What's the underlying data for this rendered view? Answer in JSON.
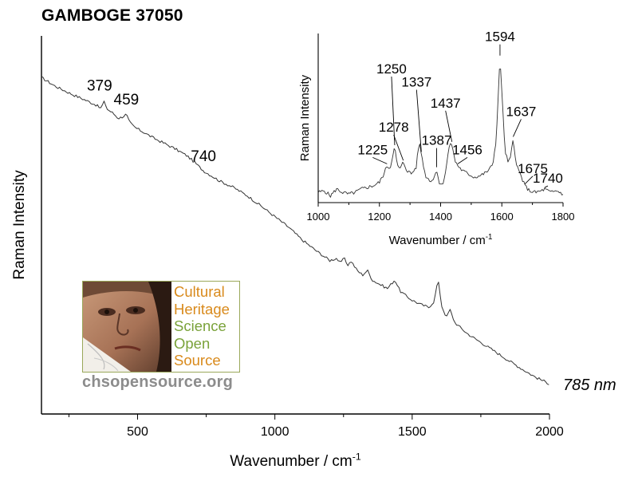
{
  "title": "GAMBOGE 37050",
  "laser_label": "785 nm",
  "logo": {
    "words": [
      "Cultural",
      "Heritage",
      "Science",
      "Open",
      "Source"
    ],
    "url": "chsopensource.org",
    "colors": {
      "orange": "#d98a1c",
      "green": "#7aa23a"
    }
  },
  "chart_data": [
    {
      "type": "line",
      "name": "main",
      "title": "GAMBOGE 37050",
      "xlabel": "Wavenumber / cm",
      "xlabel_superscript": "-1",
      "ylabel": "Raman Intensity",
      "xlim": [
        150,
        2000
      ],
      "ylim": [
        0,
        100
      ],
      "xticks": [
        500,
        1000,
        1500,
        2000
      ],
      "xtick_labels": [
        "500",
        "1000",
        "1500",
        "2000"
      ],
      "minor_xtick_step": 250,
      "y_tick_labels_shown": false,
      "grid": false,
      "color": "#333333",
      "points": [
        [
          150,
          89
        ],
        [
          200,
          86.7
        ],
        [
          260,
          84.6
        ],
        [
          320,
          82.7
        ],
        [
          350,
          81.7
        ],
        [
          365,
          80.8
        ],
        [
          379,
          82.6
        ],
        [
          390,
          80.6
        ],
        [
          410,
          79.6
        ],
        [
          430,
          78.2
        ],
        [
          445,
          78.6
        ],
        [
          459,
          79.3
        ],
        [
          470,
          77.2
        ],
        [
          490,
          75.8
        ],
        [
          520,
          74.6
        ],
        [
          560,
          72.9
        ],
        [
          600,
          71.5
        ],
        [
          640,
          70.0
        ],
        [
          680,
          68.3
        ],
        [
          710,
          66.4
        ],
        [
          740,
          64.3
        ],
        [
          760,
          63.4
        ],
        [
          800,
          61.6
        ],
        [
          850,
          59.9
        ],
        [
          900,
          57.7
        ],
        [
          950,
          55.0
        ],
        [
          1000,
          52.2
        ],
        [
          1050,
          49.4
        ],
        [
          1100,
          46.0
        ],
        [
          1150,
          43.2
        ],
        [
          1200,
          40.6
        ],
        [
          1225,
          41.2
        ],
        [
          1240,
          39.7
        ],
        [
          1250,
          41.5
        ],
        [
          1265,
          39.4
        ],
        [
          1278,
          40.4
        ],
        [
          1300,
          37.9
        ],
        [
          1320,
          36.8
        ],
        [
          1337,
          38.0
        ],
        [
          1355,
          35.4
        ],
        [
          1387,
          34.1
        ],
        [
          1410,
          33.2
        ],
        [
          1437,
          35.5
        ],
        [
          1456,
          32.5
        ],
        [
          1480,
          31.1
        ],
        [
          1500,
          30.1
        ],
        [
          1530,
          29.0
        ],
        [
          1560,
          28.2
        ],
        [
          1580,
          29.8
        ],
        [
          1594,
          35.6
        ],
        [
          1608,
          28.5
        ],
        [
          1625,
          25.5
        ],
        [
          1637,
          27.7
        ],
        [
          1655,
          24.2
        ],
        [
          1675,
          22.9
        ],
        [
          1700,
          21.3
        ],
        [
          1740,
          19.4
        ],
        [
          1800,
          16.6
        ],
        [
          1850,
          14.2
        ],
        [
          1900,
          11.9
        ],
        [
          1950,
          9.7
        ],
        [
          2000,
          8.0
        ]
      ],
      "annotations": [
        {
          "x": 379,
          "label": "379"
        },
        {
          "x": 459,
          "label": "459"
        },
        {
          "x": 740,
          "label": "740"
        }
      ]
    },
    {
      "type": "line",
      "name": "inset",
      "xlabel": "Wavenumber / cm",
      "xlabel_superscript": "-1",
      "ylabel": "Raman Intensity",
      "xlim": [
        1000,
        1800
      ],
      "ylim": [
        0,
        100
      ],
      "xticks": [
        1000,
        1200,
        1400,
        1600,
        1800
      ],
      "xtick_labels": [
        "1000",
        "1200",
        "1400",
        "1600",
        "1800"
      ],
      "minor_xtick_step": 100,
      "y_tick_labels_shown": false,
      "grid": false,
      "color": "#333333",
      "points": [
        [
          1000,
          6
        ],
        [
          1020,
          7
        ],
        [
          1040,
          4
        ],
        [
          1060,
          8
        ],
        [
          1080,
          6
        ],
        [
          1100,
          5
        ],
        [
          1120,
          6
        ],
        [
          1140,
          8
        ],
        [
          1160,
          9
        ],
        [
          1180,
          10
        ],
        [
          1200,
          12
        ],
        [
          1215,
          17
        ],
        [
          1225,
          22
        ],
        [
          1235,
          20
        ],
        [
          1242,
          27
        ],
        [
          1250,
          33
        ],
        [
          1258,
          22
        ],
        [
          1268,
          20
        ],
        [
          1278,
          24
        ],
        [
          1290,
          19
        ],
        [
          1305,
          17
        ],
        [
          1320,
          21
        ],
        [
          1330,
          36
        ],
        [
          1337,
          29
        ],
        [
          1350,
          16
        ],
        [
          1365,
          13
        ],
        [
          1378,
          14
        ],
        [
          1387,
          20
        ],
        [
          1395,
          12
        ],
        [
          1405,
          10
        ],
        [
          1415,
          17
        ],
        [
          1428,
          33
        ],
        [
          1437,
          35
        ],
        [
          1446,
          25
        ],
        [
          1456,
          22
        ],
        [
          1470,
          19
        ],
        [
          1490,
          17
        ],
        [
          1510,
          15
        ],
        [
          1530,
          16
        ],
        [
          1550,
          18
        ],
        [
          1570,
          22
        ],
        [
          1582,
          38
        ],
        [
          1590,
          70
        ],
        [
          1594,
          86
        ],
        [
          1600,
          66
        ],
        [
          1610,
          31
        ],
        [
          1620,
          24
        ],
        [
          1628,
          26
        ],
        [
          1637,
          38
        ],
        [
          1648,
          22
        ],
        [
          1660,
          17
        ],
        [
          1675,
          10
        ],
        [
          1690,
          7
        ],
        [
          1710,
          6
        ],
        [
          1730,
          7
        ],
        [
          1740,
          8
        ],
        [
          1760,
          6
        ],
        [
          1780,
          7
        ],
        [
          1800,
          5
        ]
      ],
      "annotations": [
        {
          "x": 1225,
          "label": "1225"
        },
        {
          "x": 1250,
          "label": "1250"
        },
        {
          "x": 1278,
          "label": "1278"
        },
        {
          "x": 1337,
          "label": "1337"
        },
        {
          "x": 1387,
          "label": "1387"
        },
        {
          "x": 1437,
          "label": "1437"
        },
        {
          "x": 1456,
          "label": "1456"
        },
        {
          "x": 1594,
          "label": "1594"
        },
        {
          "x": 1637,
          "label": "1637"
        },
        {
          "x": 1675,
          "label": "1675"
        },
        {
          "x": 1740,
          "label": "1740"
        }
      ]
    }
  ]
}
